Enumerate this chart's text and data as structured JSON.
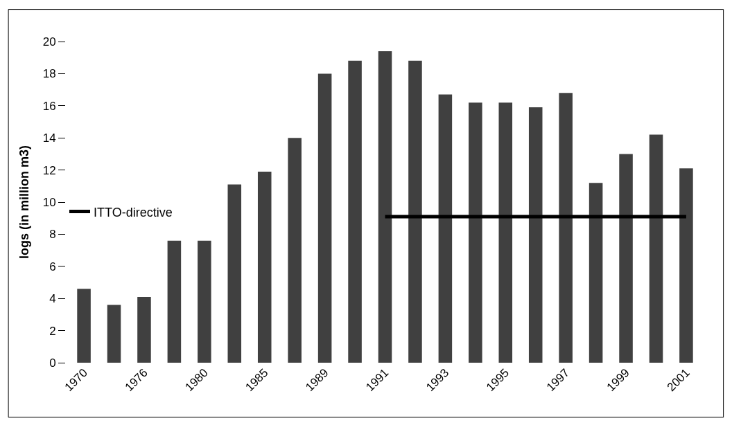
{
  "chart_data": {
    "type": "bar",
    "ylabel": "logs (in million m3)",
    "categories": [
      "1970",
      null,
      "1976",
      null,
      "1980",
      null,
      "1985",
      null,
      "1989",
      null,
      "1991",
      null,
      "1993",
      null,
      "1995",
      null,
      "1997",
      null,
      "1999",
      null,
      "2001"
    ],
    "series": [
      {
        "color": "#404040",
        "values": [
          4.6,
          3.6,
          4.1,
          7.6,
          7.6,
          11.1,
          11.9,
          14.0,
          18.0,
          18.8,
          19.4,
          18.8,
          16.7,
          16.2,
          16.2,
          15.9,
          16.8,
          11.2,
          13.0,
          14.2,
          12.1
        ]
      },
      {
        "type": "line",
        "name": "ITTO-directive",
        "color": "#000000",
        "values": [
          null,
          null,
          null,
          null,
          null,
          null,
          null,
          null,
          null,
          null,
          9.1,
          9.1,
          9.1,
          9.1,
          9.1,
          9.1,
          9.1,
          9.1,
          9.1,
          9.1,
          9.1
        ]
      }
    ],
    "ylim": [
      0,
      20
    ],
    "yticks": [
      0,
      2,
      4,
      6,
      8,
      10,
      12,
      14,
      16,
      18,
      20
    ],
    "legend": "left"
  }
}
